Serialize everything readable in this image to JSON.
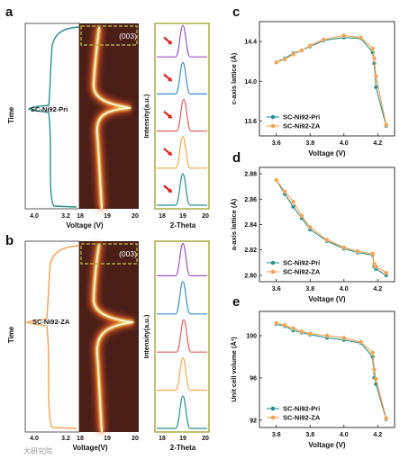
{
  "colors": {
    "pri": "#2b8f8a",
    "za": "#f6a04d",
    "frame": "#a4a635",
    "arrow": "#e0201c",
    "map_bg": "#4a1f18",
    "peak_colors": [
      "#9b55c4",
      "#3c8ecf",
      "#e25f5a",
      "#f4a64e",
      "#2a8d8b"
    ]
  },
  "panels": {
    "a": {
      "letter": "a",
      "sample": "SC-Ni92-Pri",
      "ylabel": "Time",
      "xlabel": "Voltage (V)",
      "x_ticks": [
        "4.0",
        "3.2",
        "18"
      ],
      "map_badge": "(003)",
      "map_ticks": [
        "19",
        "20"
      ],
      "intensity_label": "Intensity(a.u.)",
      "theta_label": "2-Theta",
      "theta_ticks": [
        "18",
        "19",
        "20"
      ]
    },
    "b": {
      "letter": "b",
      "sample": "SC-Ni92-ZA",
      "ylabel": "Time",
      "xlabel": "Voltage(V)",
      "x_ticks": [
        "4.0",
        "3.2",
        "18"
      ],
      "map_badge": "(003)",
      "map_ticks": [
        "19",
        "20"
      ],
      "intensity_label": "Intensity(a.u.)",
      "theta_label": "2-Theta",
      "theta_ticks": [
        "18",
        "19",
        "20"
      ]
    }
  },
  "watermark": "大研究院",
  "chart_data": [
    {
      "panel": "c",
      "type": "line",
      "ylabel": "c-axis lattice (Å)",
      "xlabel": "Voltage (V)",
      "xlim": [
        3.5,
        4.3
      ],
      "ylim": [
        13.45,
        14.6
      ],
      "x_ticks": [
        3.6,
        3.8,
        4.0,
        4.2
      ],
      "y_ticks": [
        13.6,
        14.0,
        14.4
      ],
      "tick_labels_x": [
        "3.6",
        "3.8",
        "4.0",
        "4.2"
      ],
      "tick_labels_y": [
        "13.6",
        "14.0",
        "14.4"
      ],
      "legend_position": "bottom-left",
      "series": [
        {
          "name": "SC-Ni92-Pri",
          "x": [
            3.6,
            3.65,
            3.7,
            3.75,
            3.8,
            3.88,
            4.0,
            4.1,
            4.17,
            4.18,
            4.19,
            4.25
          ],
          "y": [
            14.19,
            14.23,
            14.28,
            14.31,
            14.35,
            14.41,
            14.44,
            14.43,
            14.29,
            14.18,
            13.94,
            13.55
          ]
        },
        {
          "name": "SC-Ni92-ZA",
          "x": [
            3.6,
            3.65,
            3.7,
            3.75,
            3.8,
            3.88,
            4.0,
            4.1,
            4.17,
            4.18,
            4.19,
            4.25
          ],
          "y": [
            14.19,
            14.22,
            14.27,
            14.31,
            14.36,
            14.42,
            14.46,
            14.44,
            14.33,
            14.23,
            14.05,
            13.56
          ]
        }
      ]
    },
    {
      "panel": "d",
      "type": "line",
      "ylabel": "a-axis lattice (Å)",
      "xlabel": "Voltage (V)",
      "xlim": [
        3.5,
        4.3
      ],
      "ylim": [
        2.795,
        2.885
      ],
      "x_ticks": [
        3.6,
        3.8,
        4.0,
        4.2
      ],
      "y_ticks": [
        2.8,
        2.82,
        2.84,
        2.86,
        2.88
      ],
      "tick_labels_x": [
        "3.6",
        "3.8",
        "4.0",
        "4.2"
      ],
      "tick_labels_y": [
        "2.80",
        "2.82",
        "2.84",
        "2.86",
        "2.88"
      ],
      "legend_position": "bottom-left",
      "series": [
        {
          "name": "SC-Ni92-Pri",
          "x": [
            3.6,
            3.65,
            3.7,
            3.75,
            3.8,
            3.9,
            4.0,
            4.08,
            4.17,
            4.18,
            4.19,
            4.25
          ],
          "y": [
            2.875,
            2.864,
            2.854,
            2.845,
            2.836,
            2.827,
            2.821,
            2.818,
            2.816,
            2.807,
            2.805,
            2.8
          ]
        },
        {
          "name": "SC-Ni92-ZA",
          "x": [
            3.6,
            3.65,
            3.7,
            3.75,
            3.8,
            3.9,
            4.0,
            4.08,
            4.17,
            4.18,
            4.19,
            4.25
          ],
          "y": [
            2.875,
            2.866,
            2.858,
            2.847,
            2.838,
            2.828,
            2.822,
            2.819,
            2.817,
            2.809,
            2.807,
            2.802
          ]
        }
      ]
    },
    {
      "panel": "e",
      "type": "line",
      "ylabel": "Unit cell volume (Å³)",
      "xlabel": "Voltage (V)",
      "xlim": [
        3.5,
        4.3
      ],
      "ylim": [
        91.3,
        102.3
      ],
      "x_ticks": [
        3.6,
        3.8,
        4.0,
        4.2
      ],
      "y_ticks": [
        92,
        96,
        100
      ],
      "tick_labels_x": [
        "3.6",
        "3.8",
        "4.0",
        "4.2"
      ],
      "tick_labels_y": [
        "92",
        "96",
        "100"
      ],
      "legend_position": "bottom-left",
      "series": [
        {
          "name": "SC-Ni92-Pri",
          "x": [
            3.6,
            3.65,
            3.7,
            3.75,
            3.8,
            3.9,
            4.0,
            4.1,
            4.17,
            4.18,
            4.19,
            4.25
          ],
          "y": [
            101.1,
            100.9,
            100.5,
            100.3,
            100.1,
            99.8,
            99.6,
            99.3,
            98.0,
            96.0,
            95.4,
            92.1
          ]
        },
        {
          "name": "SC-Ni92-ZA",
          "x": [
            3.6,
            3.65,
            3.7,
            3.75,
            3.8,
            3.9,
            4.0,
            4.1,
            4.17,
            4.18,
            4.19,
            4.25
          ],
          "y": [
            101.2,
            101.0,
            100.7,
            100.4,
            100.2,
            100.0,
            99.8,
            99.4,
            98.4,
            96.8,
            95.9,
            92.2
          ]
        }
      ]
    }
  ]
}
